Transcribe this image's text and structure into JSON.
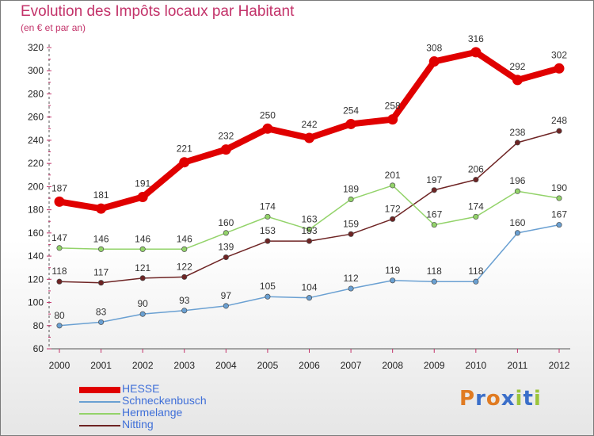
{
  "title": "Evolution des Impôts locaux par Habitant",
  "subtitle": "(en € et par an)",
  "chart_data": {
    "type": "line",
    "x": [
      "2000",
      "2001",
      "2002",
      "2003",
      "2004",
      "2005",
      "2006",
      "2007",
      "2008",
      "2009",
      "2010",
      "2011",
      "2012"
    ],
    "ylim": [
      60,
      320
    ],
    "yticks": [
      60,
      80,
      100,
      120,
      140,
      160,
      180,
      200,
      220,
      240,
      260,
      280,
      300,
      320
    ],
    "grid": false,
    "legend_position": "bottom-left",
    "series": [
      {
        "name": "HESSE",
        "color": "#e00000",
        "values": [
          187,
          181,
          191,
          221,
          232,
          250,
          242,
          254,
          258,
          308,
          316,
          292,
          302
        ]
      },
      {
        "name": "Schneckenbusch",
        "color": "#6aa0d2",
        "values": [
          80,
          83,
          90,
          93,
          97,
          105,
          104,
          112,
          119,
          118,
          118,
          160,
          167
        ]
      },
      {
        "name": "Hermelange",
        "color": "#93d36a",
        "values": [
          147,
          146,
          146,
          146,
          160,
          174,
          163,
          189,
          201,
          167,
          174,
          196,
          190
        ]
      },
      {
        "name": "Nitting",
        "color": "#6e2424",
        "values": [
          118,
          117,
          121,
          122,
          139,
          153,
          153,
          159,
          172,
          197,
          206,
          238,
          248
        ]
      }
    ]
  },
  "logo": {
    "text": "Proxiti",
    "letter_colors": [
      "#e07b22",
      "#3b6fc9",
      "#e07b22",
      "#3b6fc9",
      "#9bc43a",
      "#3b6fc9",
      "#9bc43a"
    ]
  }
}
